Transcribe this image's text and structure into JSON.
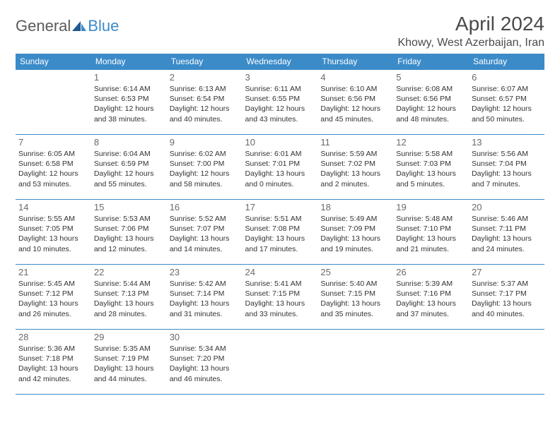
{
  "logo": {
    "part1": "General",
    "part2": "Blue"
  },
  "title": "April 2024",
  "location": "Khowy, West Azerbaijan, Iran",
  "colors": {
    "header_bg": "#3b8bc9",
    "header_fg": "#ffffff",
    "border": "#3b8bc9",
    "text": "#333333",
    "daynum": "#6a6a6a"
  },
  "day_labels": [
    "Sunday",
    "Monday",
    "Tuesday",
    "Wednesday",
    "Thursday",
    "Friday",
    "Saturday"
  ],
  "weeks": [
    [
      null,
      {
        "n": "1",
        "sr": "Sunrise: 6:14 AM",
        "ss": "Sunset: 6:53 PM",
        "d1": "Daylight: 12 hours",
        "d2": "and 38 minutes."
      },
      {
        "n": "2",
        "sr": "Sunrise: 6:13 AM",
        "ss": "Sunset: 6:54 PM",
        "d1": "Daylight: 12 hours",
        "d2": "and 40 minutes."
      },
      {
        "n": "3",
        "sr": "Sunrise: 6:11 AM",
        "ss": "Sunset: 6:55 PM",
        "d1": "Daylight: 12 hours",
        "d2": "and 43 minutes."
      },
      {
        "n": "4",
        "sr": "Sunrise: 6:10 AM",
        "ss": "Sunset: 6:56 PM",
        "d1": "Daylight: 12 hours",
        "d2": "and 45 minutes."
      },
      {
        "n": "5",
        "sr": "Sunrise: 6:08 AM",
        "ss": "Sunset: 6:56 PM",
        "d1": "Daylight: 12 hours",
        "d2": "and 48 minutes."
      },
      {
        "n": "6",
        "sr": "Sunrise: 6:07 AM",
        "ss": "Sunset: 6:57 PM",
        "d1": "Daylight: 12 hours",
        "d2": "and 50 minutes."
      }
    ],
    [
      {
        "n": "7",
        "sr": "Sunrise: 6:05 AM",
        "ss": "Sunset: 6:58 PM",
        "d1": "Daylight: 12 hours",
        "d2": "and 53 minutes."
      },
      {
        "n": "8",
        "sr": "Sunrise: 6:04 AM",
        "ss": "Sunset: 6:59 PM",
        "d1": "Daylight: 12 hours",
        "d2": "and 55 minutes."
      },
      {
        "n": "9",
        "sr": "Sunrise: 6:02 AM",
        "ss": "Sunset: 7:00 PM",
        "d1": "Daylight: 12 hours",
        "d2": "and 58 minutes."
      },
      {
        "n": "10",
        "sr": "Sunrise: 6:01 AM",
        "ss": "Sunset: 7:01 PM",
        "d1": "Daylight: 13 hours",
        "d2": "and 0 minutes."
      },
      {
        "n": "11",
        "sr": "Sunrise: 5:59 AM",
        "ss": "Sunset: 7:02 PM",
        "d1": "Daylight: 13 hours",
        "d2": "and 2 minutes."
      },
      {
        "n": "12",
        "sr": "Sunrise: 5:58 AM",
        "ss": "Sunset: 7:03 PM",
        "d1": "Daylight: 13 hours",
        "d2": "and 5 minutes."
      },
      {
        "n": "13",
        "sr": "Sunrise: 5:56 AM",
        "ss": "Sunset: 7:04 PM",
        "d1": "Daylight: 13 hours",
        "d2": "and 7 minutes."
      }
    ],
    [
      {
        "n": "14",
        "sr": "Sunrise: 5:55 AM",
        "ss": "Sunset: 7:05 PM",
        "d1": "Daylight: 13 hours",
        "d2": "and 10 minutes."
      },
      {
        "n": "15",
        "sr": "Sunrise: 5:53 AM",
        "ss": "Sunset: 7:06 PM",
        "d1": "Daylight: 13 hours",
        "d2": "and 12 minutes."
      },
      {
        "n": "16",
        "sr": "Sunrise: 5:52 AM",
        "ss": "Sunset: 7:07 PM",
        "d1": "Daylight: 13 hours",
        "d2": "and 14 minutes."
      },
      {
        "n": "17",
        "sr": "Sunrise: 5:51 AM",
        "ss": "Sunset: 7:08 PM",
        "d1": "Daylight: 13 hours",
        "d2": "and 17 minutes."
      },
      {
        "n": "18",
        "sr": "Sunrise: 5:49 AM",
        "ss": "Sunset: 7:09 PM",
        "d1": "Daylight: 13 hours",
        "d2": "and 19 minutes."
      },
      {
        "n": "19",
        "sr": "Sunrise: 5:48 AM",
        "ss": "Sunset: 7:10 PM",
        "d1": "Daylight: 13 hours",
        "d2": "and 21 minutes."
      },
      {
        "n": "20",
        "sr": "Sunrise: 5:46 AM",
        "ss": "Sunset: 7:11 PM",
        "d1": "Daylight: 13 hours",
        "d2": "and 24 minutes."
      }
    ],
    [
      {
        "n": "21",
        "sr": "Sunrise: 5:45 AM",
        "ss": "Sunset: 7:12 PM",
        "d1": "Daylight: 13 hours",
        "d2": "and 26 minutes."
      },
      {
        "n": "22",
        "sr": "Sunrise: 5:44 AM",
        "ss": "Sunset: 7:13 PM",
        "d1": "Daylight: 13 hours",
        "d2": "and 28 minutes."
      },
      {
        "n": "23",
        "sr": "Sunrise: 5:42 AM",
        "ss": "Sunset: 7:14 PM",
        "d1": "Daylight: 13 hours",
        "d2": "and 31 minutes."
      },
      {
        "n": "24",
        "sr": "Sunrise: 5:41 AM",
        "ss": "Sunset: 7:15 PM",
        "d1": "Daylight: 13 hours",
        "d2": "and 33 minutes."
      },
      {
        "n": "25",
        "sr": "Sunrise: 5:40 AM",
        "ss": "Sunset: 7:15 PM",
        "d1": "Daylight: 13 hours",
        "d2": "and 35 minutes."
      },
      {
        "n": "26",
        "sr": "Sunrise: 5:39 AM",
        "ss": "Sunset: 7:16 PM",
        "d1": "Daylight: 13 hours",
        "d2": "and 37 minutes."
      },
      {
        "n": "27",
        "sr": "Sunrise: 5:37 AM",
        "ss": "Sunset: 7:17 PM",
        "d1": "Daylight: 13 hours",
        "d2": "and 40 minutes."
      }
    ],
    [
      {
        "n": "28",
        "sr": "Sunrise: 5:36 AM",
        "ss": "Sunset: 7:18 PM",
        "d1": "Daylight: 13 hours",
        "d2": "and 42 minutes."
      },
      {
        "n": "29",
        "sr": "Sunrise: 5:35 AM",
        "ss": "Sunset: 7:19 PM",
        "d1": "Daylight: 13 hours",
        "d2": "and 44 minutes."
      },
      {
        "n": "30",
        "sr": "Sunrise: 5:34 AM",
        "ss": "Sunset: 7:20 PM",
        "d1": "Daylight: 13 hours",
        "d2": "and 46 minutes."
      },
      null,
      null,
      null,
      null
    ]
  ]
}
